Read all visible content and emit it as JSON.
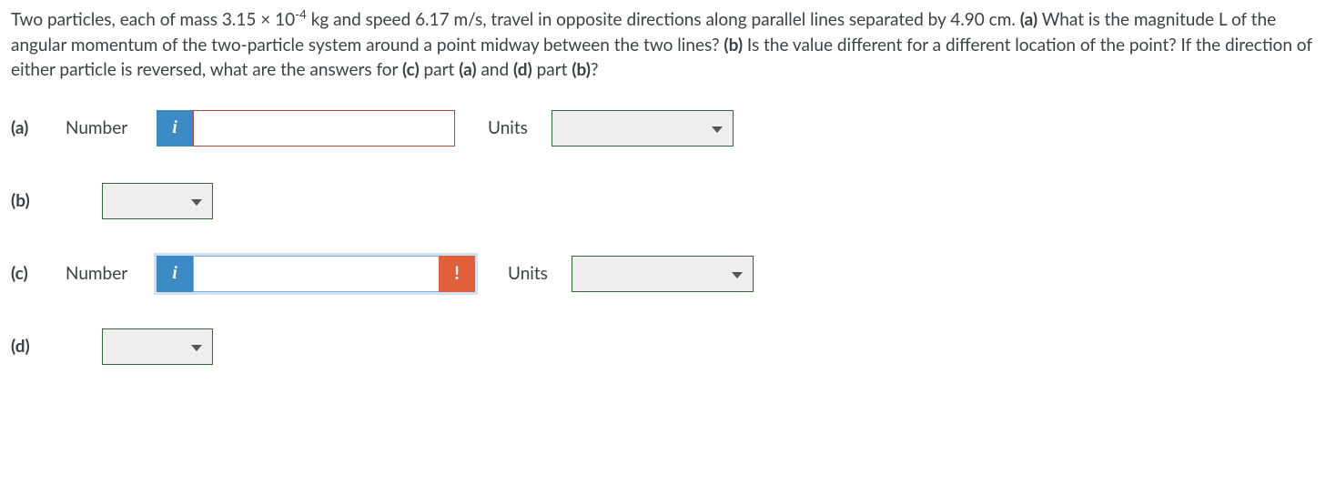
{
  "question": {
    "full_html": "Two particles, each of mass 3.15 × 10<sup>-4</sup> kg and speed 6.17 m/s, travel in opposite directions along parallel lines separated by 4.90 cm. <b>(a)</b> What is the magnitude L of the angular momentum of the two-particle system around a point midway between the two lines? <b>(b)</b> Is the value different for a different location of the point? If the direction of either particle is reversed, what are the answers for <b>(c)</b> part <b>(a)</b> and <b>(d)</b> part <b>(b)</b>?",
    "mass": "3.15 × 10-4 kg",
    "speed": "6.17 m/s",
    "separation": "4.90 cm"
  },
  "parts": {
    "a": {
      "label": "(a)",
      "number_label": "Number",
      "info_glyph": "i",
      "value": "",
      "units_label": "Units",
      "units_value": "",
      "input_state": "error"
    },
    "b": {
      "label": "(b)",
      "value": ""
    },
    "c": {
      "label": "(c)",
      "number_label": "Number",
      "info_glyph": "i",
      "warn_glyph": "!",
      "value": "",
      "units_label": "Units",
      "units_value": "",
      "input_state": "focused_with_warn"
    },
    "d": {
      "label": "(d)",
      "value": ""
    }
  },
  "colors": {
    "text": "#3b4245",
    "info_bg": "#3b8ac4",
    "warn_bg": "#e0603b",
    "select_border": "#2e6b33",
    "select_bg": "#eeeeee",
    "error_border": "#b84a3a",
    "focus_border": "#7db0e0",
    "focus_glow": "rgba(120,170,220,0.35)"
  }
}
